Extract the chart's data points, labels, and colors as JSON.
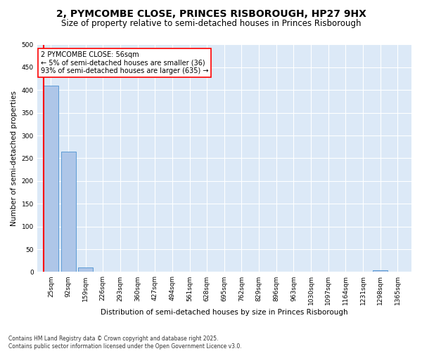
{
  "title": "2, PYMCOMBE CLOSE, PRINCES RISBOROUGH, HP27 9HX",
  "subtitle": "Size of property relative to semi-detached houses in Princes Risborough",
  "xlabel": "Distribution of semi-detached houses by size in Princes Risborough",
  "ylabel": "Number of semi-detached properties",
  "categories": [
    "25sqm",
    "92sqm",
    "159sqm",
    "226sqm",
    "293sqm",
    "360sqm",
    "427sqm",
    "494sqm",
    "561sqm",
    "628sqm",
    "695sqm",
    "762sqm",
    "829sqm",
    "896sqm",
    "963sqm",
    "1030sqm",
    "1097sqm",
    "1164sqm",
    "1231sqm",
    "1298sqm",
    "1365sqm"
  ],
  "values": [
    410,
    265,
    10,
    0,
    0,
    0,
    0,
    0,
    0,
    0,
    0,
    0,
    0,
    0,
    0,
    0,
    0,
    0,
    0,
    4,
    0
  ],
  "bar_color": "#aec6e8",
  "bar_edge_color": "#5b9bd5",
  "annotation_title": "2 PYMCOMBE CLOSE: 56sqm",
  "annotation_line1": "← 5% of semi-detached houses are smaller (36)",
  "annotation_line2": "93% of semi-detached houses are larger (635) →",
  "ylim": [
    0,
    500
  ],
  "yticks": [
    0,
    50,
    100,
    150,
    200,
    250,
    300,
    350,
    400,
    450,
    500
  ],
  "plot_bg_color": "#dce9f7",
  "footer1": "Contains HM Land Registry data © Crown copyright and database right 2025.",
  "footer2": "Contains public sector information licensed under the Open Government Licence v3.0.",
  "title_fontsize": 10,
  "subtitle_fontsize": 8.5,
  "annotation_fontsize": 7,
  "ylabel_fontsize": 7.5,
  "xlabel_fontsize": 7.5,
  "tick_fontsize": 6.5,
  "footer_fontsize": 5.5
}
